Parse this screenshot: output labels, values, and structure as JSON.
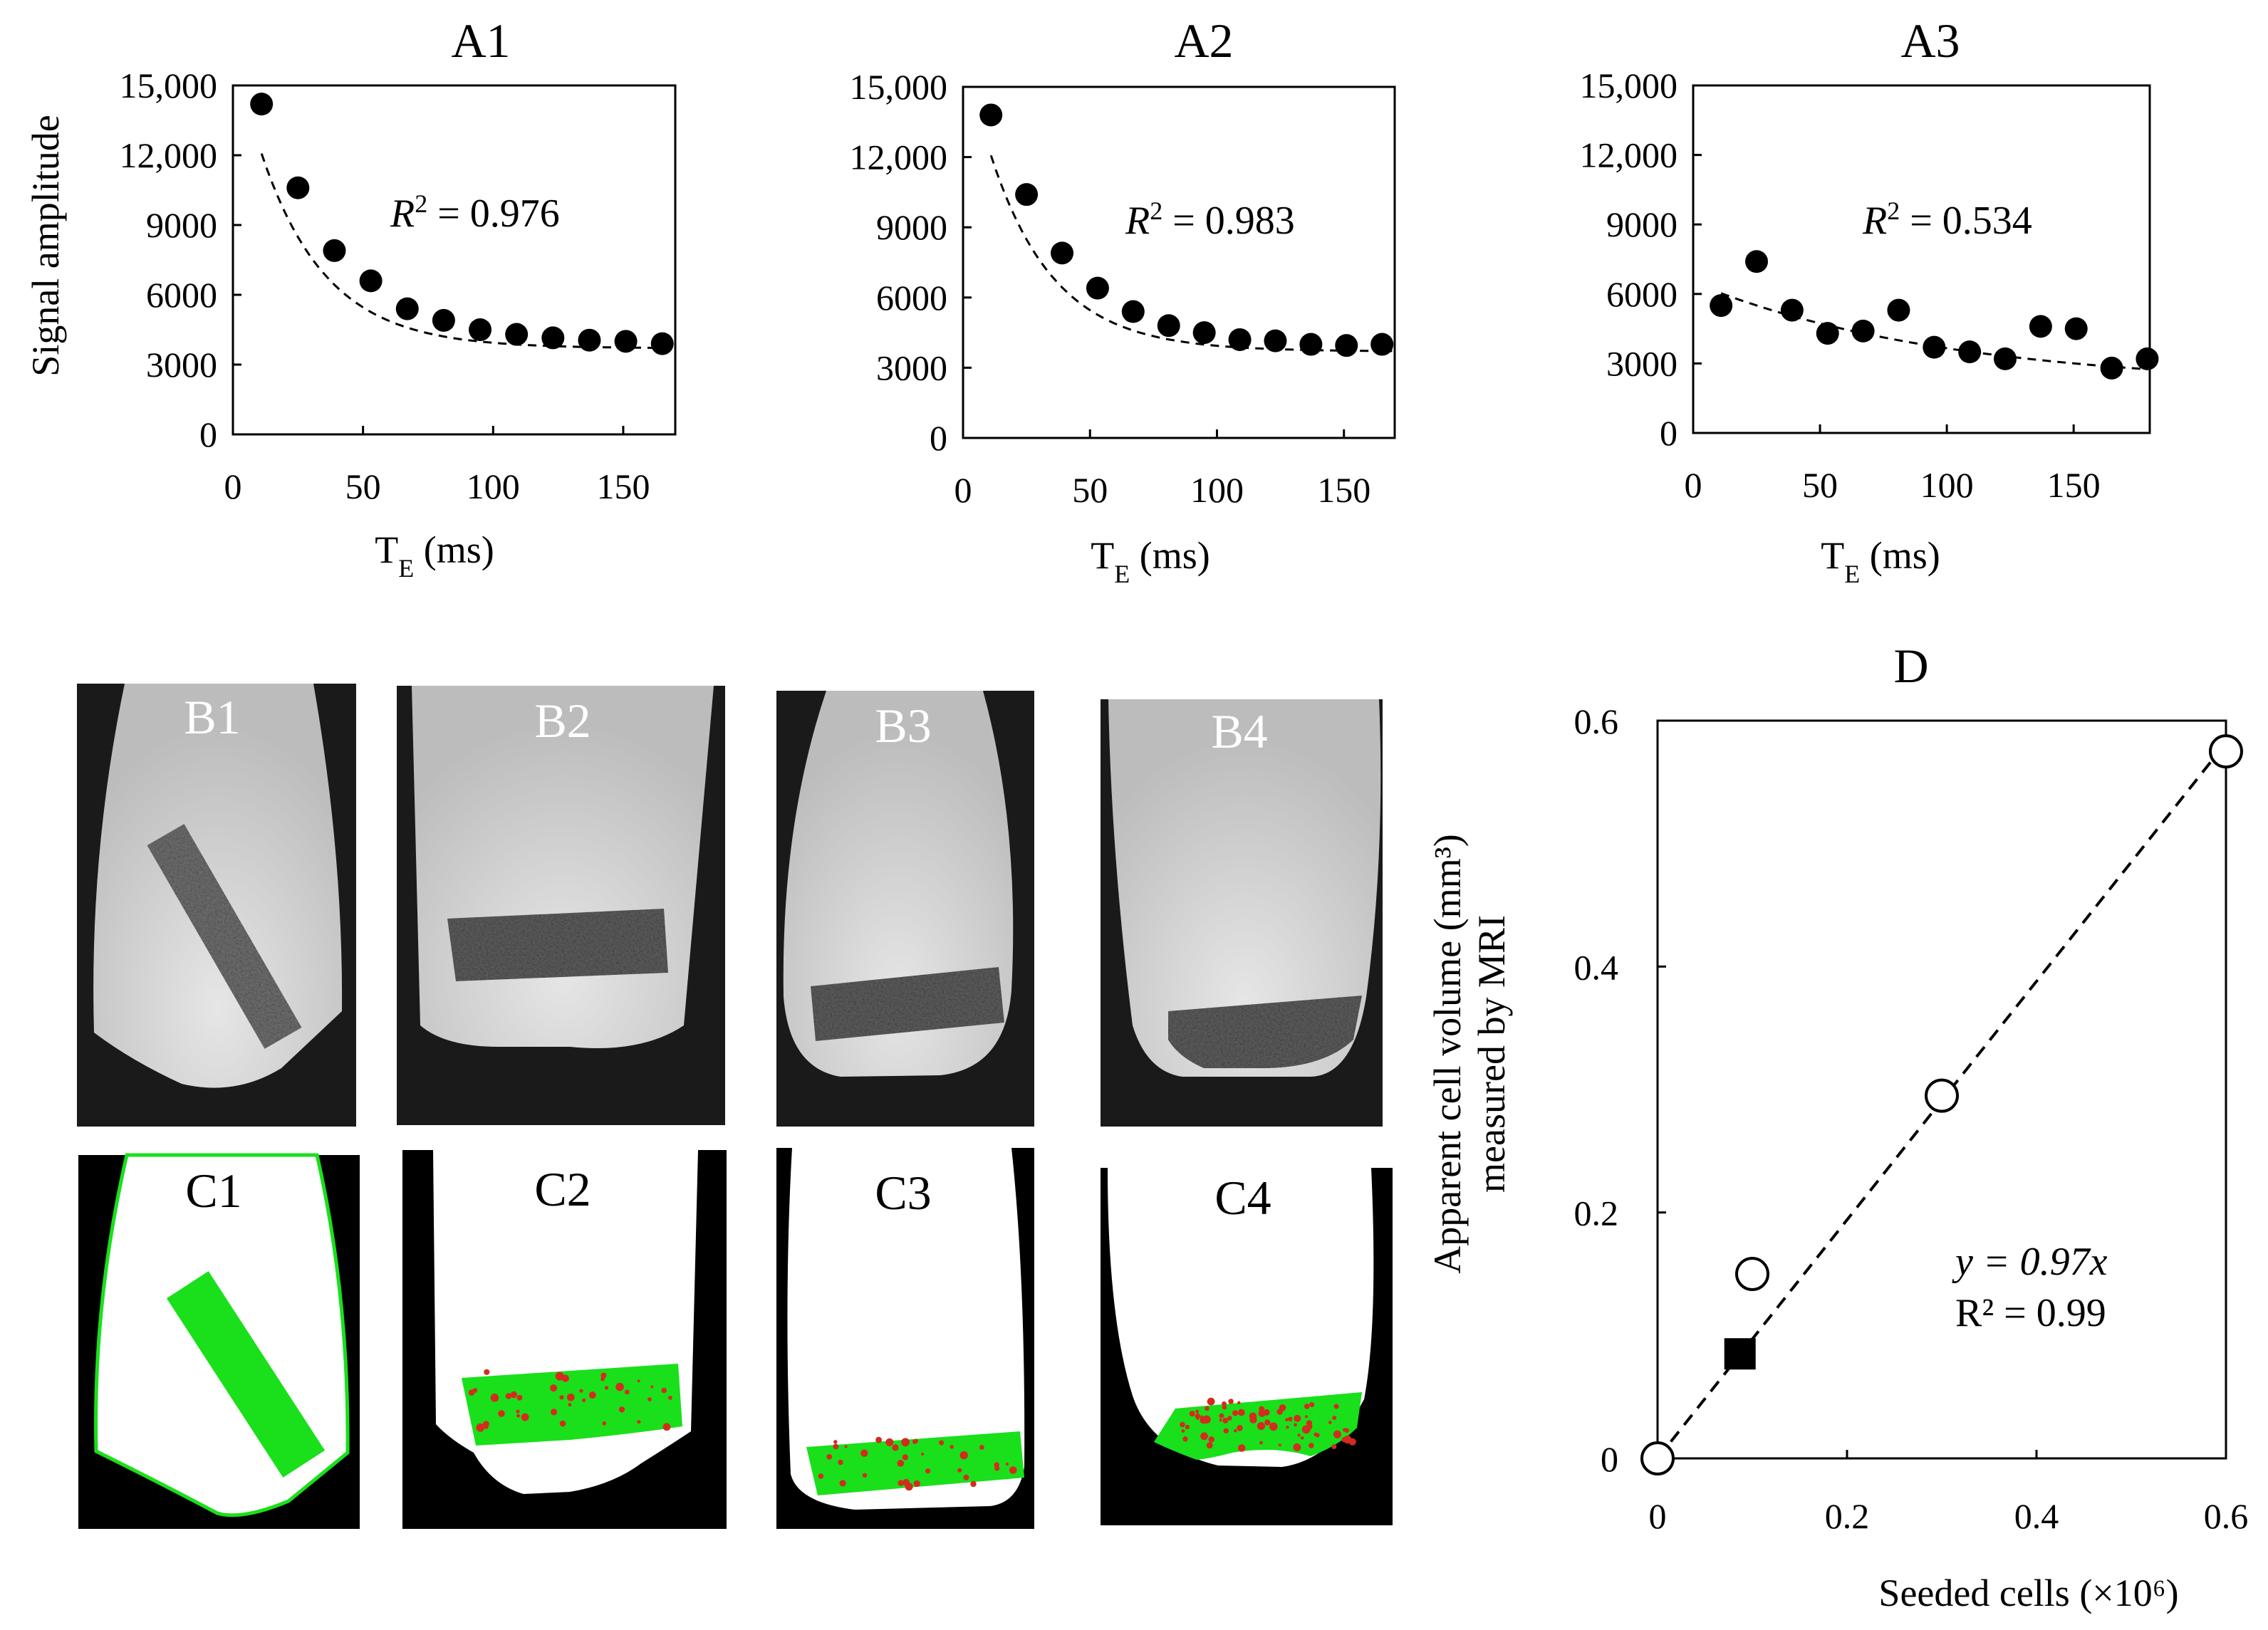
{
  "chart_data": [
    {
      "id": "A1",
      "type": "scatter",
      "title": "A1",
      "xlabel": "T",
      "xlabel_sub": "E",
      "xlabel_unit": " (ms)",
      "ylabel": "Signal amplitude",
      "xlim": [
        0,
        170
      ],
      "ylim": [
        0,
        15000
      ],
      "xticks": [
        0,
        50,
        100,
        150
      ],
      "yticks": [
        0,
        3000,
        6000,
        9000,
        12000,
        15000
      ],
      "ytick_labels": [
        "0",
        "3000",
        "6000",
        "9000",
        "12,000",
        "15,000"
      ],
      "r2_label": "R",
      "r2_sup": "2",
      "r2_value": "= 0.976",
      "x": [
        11,
        25,
        39,
        53,
        67,
        81,
        95,
        109,
        123,
        137,
        151,
        165
      ],
      "y": [
        14200,
        10600,
        7900,
        6600,
        5400,
        4900,
        4500,
        4300,
        4150,
        4050,
        4000,
        3900
      ],
      "fit": {
        "A": 13000,
        "tau": 25,
        "C": 3700
      }
    },
    {
      "id": "A2",
      "type": "scatter",
      "title": "A2",
      "xlabel": "T",
      "xlabel_sub": "E",
      "xlabel_unit": " (ms)",
      "xlim": [
        0,
        170
      ],
      "ylim": [
        0,
        15000
      ],
      "xticks": [
        0,
        50,
        100,
        150
      ],
      "yticks": [
        0,
        3000,
        6000,
        9000,
        12000,
        15000
      ],
      "ytick_labels": [
        "0",
        "3000",
        "6000",
        "9000",
        "12,000",
        "15,000"
      ],
      "r2_label": "R",
      "r2_sup": "2",
      "r2_value": "= 0.983",
      "x": [
        11,
        25,
        39,
        53,
        67,
        81,
        95,
        109,
        123,
        137,
        151,
        165
      ],
      "y": [
        13800,
        10400,
        7900,
        6400,
        5400,
        4800,
        4500,
        4200,
        4150,
        4000,
        3950,
        4000
      ],
      "fit": {
        "A": 13000,
        "tau": 25,
        "C": 3700
      }
    },
    {
      "id": "A3",
      "type": "scatter",
      "title": "A3",
      "xlabel": "T",
      "xlabel_sub": "E",
      "xlabel_unit": " (ms)",
      "xlim": [
        0,
        180
      ],
      "ylim": [
        0,
        15000
      ],
      "xticks": [
        0,
        50,
        100,
        150
      ],
      "yticks": [
        0,
        3000,
        6000,
        9000,
        12000,
        15000
      ],
      "ytick_labels": [
        "0",
        "3000",
        "6000",
        "9000",
        "12,000",
        "15,000"
      ],
      "r2_label": "R",
      "r2_sup": "2",
      "r2_value": "= 0.534",
      "x": [
        11,
        25,
        39,
        53,
        67,
        81,
        95,
        109,
        123,
        137,
        151,
        165,
        179
      ],
      "y": [
        5500,
        7400,
        5300,
        4300,
        4400,
        5300,
        3700,
        3500,
        3200,
        4600,
        4500,
        2800,
        3200
      ],
      "fit": {
        "A": 4500,
        "tau": 100,
        "C": 2000
      }
    },
    {
      "id": "D",
      "type": "scatter",
      "title": "D",
      "xlabel": "Seeded cells (×10⁶)",
      "ylabel_line1": "Apparent cell volume (mm³)",
      "ylabel_line2": "measured by MRI",
      "xlim": [
        0,
        0.6
      ],
      "ylim": [
        0,
        0.6
      ],
      "xticks": [
        0,
        0.2,
        0.4,
        0.6
      ],
      "yticks": [
        0,
        0.2,
        0.4,
        0.6
      ],
      "xtick_labels": [
        "0",
        "0.2",
        "0.4",
        "0.6"
      ],
      "ytick_labels": [
        "0",
        "0.2",
        "0.4",
        "0.6"
      ],
      "open_points": {
        "x": [
          0,
          0.1,
          0.3,
          0.6
        ],
        "y": [
          0,
          0.15,
          0.295,
          0.575
        ]
      },
      "filled_points": {
        "x": [
          0.087
        ],
        "y": [
          0.085
        ]
      },
      "fit": {
        "slope": 0.97
      },
      "equation": "y = 0.97x",
      "r2_text": "R² = 0.99"
    }
  ],
  "images": {
    "B1": "B1",
    "B2": "B2",
    "B3": "B3",
    "B4": "B4",
    "C1": "C1",
    "C2": "C2",
    "C3": "C3",
    "C4": "C4"
  },
  "colors": {
    "bg": "#1a1a1a",
    "tube": "#bdbdbd",
    "scaffold": "#6d6d6d",
    "green": "#19e01a",
    "red": "#d42b1f"
  }
}
